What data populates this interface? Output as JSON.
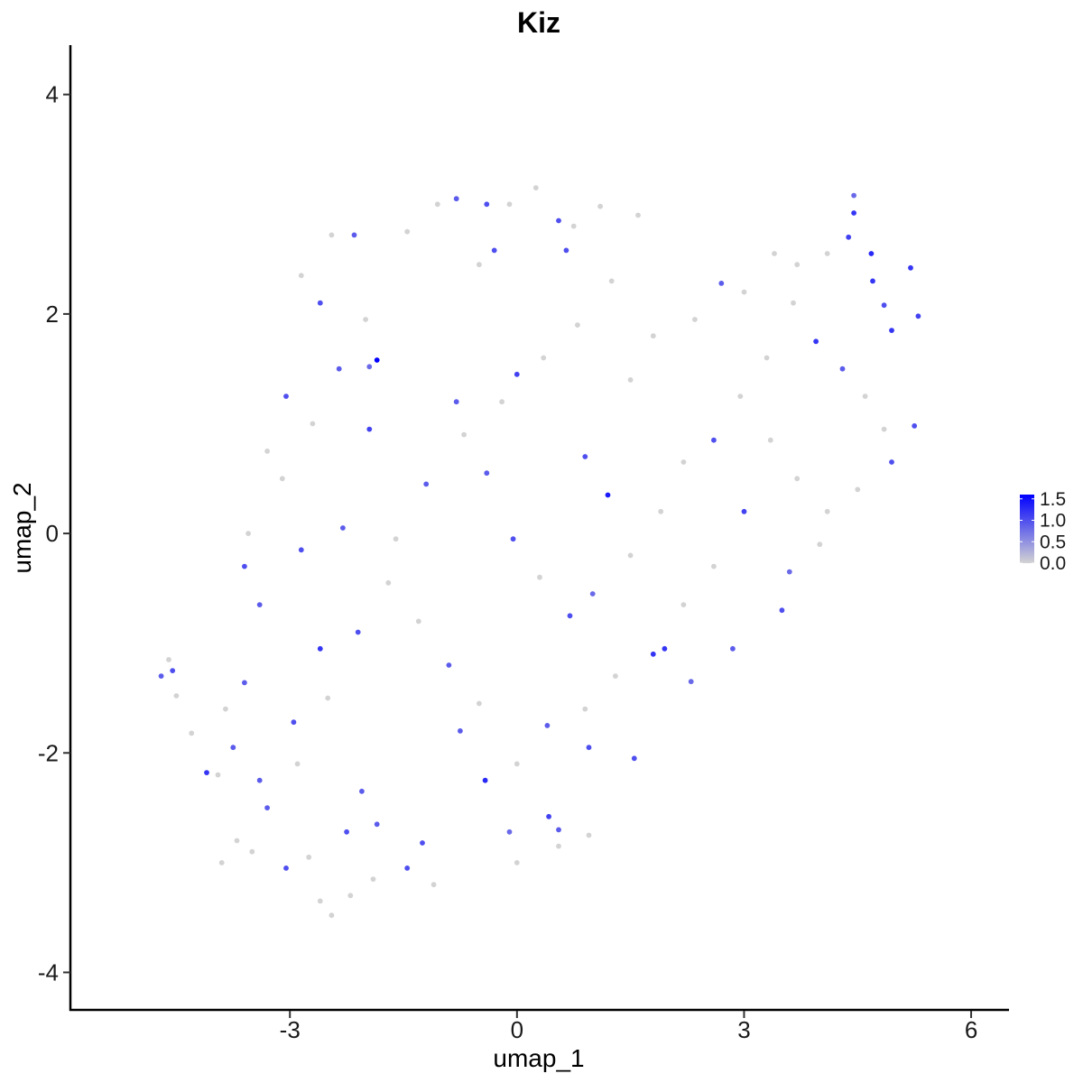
{
  "chart_data": {
    "type": "scatter",
    "title": "Kiz",
    "xlabel": "umap_1",
    "ylabel": "umap_2",
    "xlim": [
      -5.9,
      6.5
    ],
    "ylim": [
      -4.35,
      4.45
    ],
    "x_ticks": [
      -3,
      0,
      3,
      6
    ],
    "y_ticks": [
      -4,
      -2,
      0,
      2,
      4
    ],
    "x_tick_labels": [
      "-3",
      "0",
      "3",
      "6"
    ],
    "y_tick_labels": [
      "-4",
      "-2",
      "0",
      "2",
      "4"
    ],
    "grid": false,
    "legend": {
      "placement": "right",
      "type": "colorbar",
      "min": 0,
      "max": 1.6,
      "ticks": [
        "0.0",
        "0.5",
        "1.0",
        "1.5"
      ],
      "low_color": "#d3d3d3",
      "high_color": "#0000ff"
    },
    "points": [
      {
        "x": -4.7,
        "y": -1.3,
        "v": 0.9
      },
      {
        "x": -4.55,
        "y": -1.25,
        "v": 1.0
      },
      {
        "x": -4.6,
        "y": -1.15,
        "v": 0.0
      },
      {
        "x": -4.5,
        "y": -1.48,
        "v": 0.0
      },
      {
        "x": -4.3,
        "y": -1.82,
        "v": 0.0
      },
      {
        "x": -4.1,
        "y": -2.18,
        "v": 1.2
      },
      {
        "x": -3.75,
        "y": -1.95,
        "v": 0.9
      },
      {
        "x": -3.6,
        "y": -1.36,
        "v": 0.9
      },
      {
        "x": -3.4,
        "y": -2.25,
        "v": 0.9
      },
      {
        "x": -3.05,
        "y": -3.05,
        "v": 1.0
      },
      {
        "x": -2.95,
        "y": -1.72,
        "v": 1.0
      },
      {
        "x": -2.6,
        "y": -1.05,
        "v": 1.2
      },
      {
        "x": -2.25,
        "y": -2.72,
        "v": 1.0
      },
      {
        "x": -2.05,
        "y": -2.35,
        "v": 0.9
      },
      {
        "x": -1.85,
        "y": -2.65,
        "v": 0.9
      },
      {
        "x": -1.45,
        "y": -3.05,
        "v": 1.0
      },
      {
        "x": -1.25,
        "y": -2.82,
        "v": 1.0
      },
      {
        "x": -0.75,
        "y": -1.8,
        "v": 0.9
      },
      {
        "x": -0.42,
        "y": -2.25,
        "v": 1.3
      },
      {
        "x": -0.1,
        "y": -2.72,
        "v": 0.8
      },
      {
        "x": 0.42,
        "y": -2.58,
        "v": 1.1
      },
      {
        "x": 0.55,
        "y": -2.7,
        "v": 0.9
      },
      {
        "x": 0.95,
        "y": -1.95,
        "v": 1.0
      },
      {
        "x": 1.55,
        "y": -2.05,
        "v": 1.0
      },
      {
        "x": 1.95,
        "y": -1.05,
        "v": 1.2
      },
      {
        "x": 2.3,
        "y": -1.35,
        "v": 0.8
      },
      {
        "x": 2.85,
        "y": -1.05,
        "v": 0.9
      },
      {
        "x": 3.5,
        "y": -0.7,
        "v": 1.0
      },
      {
        "x": 3.6,
        "y": -0.35,
        "v": 0.8
      },
      {
        "x": 4.0,
        "y": -0.1,
        "v": 0.0
      },
      {
        "x": 4.95,
        "y": 0.65,
        "v": 1.0
      },
      {
        "x": 5.25,
        "y": 0.98,
        "v": 1.0
      },
      {
        "x": 5.3,
        "y": 1.98,
        "v": 1.1
      },
      {
        "x": 5.2,
        "y": 2.42,
        "v": 1.2
      },
      {
        "x": 4.95,
        "y": 1.85,
        "v": 1.2
      },
      {
        "x": 4.85,
        "y": 2.08,
        "v": 1.0
      },
      {
        "x": 4.68,
        "y": 2.55,
        "v": 1.3
      },
      {
        "x": 4.45,
        "y": 2.92,
        "v": 1.2
      },
      {
        "x": 4.38,
        "y": 2.7,
        "v": 1.1
      },
      {
        "x": 4.7,
        "y": 2.3,
        "v": 1.2
      },
      {
        "x": 4.45,
        "y": 3.08,
        "v": 0.8
      },
      {
        "x": 4.1,
        "y": 2.55,
        "v": 0.0
      },
      {
        "x": 3.7,
        "y": 2.45,
        "v": 0.0
      },
      {
        "x": 3.4,
        "y": 2.55,
        "v": 0.0
      },
      {
        "x": 3.0,
        "y": 2.2,
        "v": 0.0
      },
      {
        "x": 2.7,
        "y": 2.28,
        "v": 0.9
      },
      {
        "x": 2.35,
        "y": 1.95,
        "v": 0.0
      },
      {
        "x": 1.8,
        "y": 1.8,
        "v": 0.0
      },
      {
        "x": 1.5,
        "y": 1.4,
        "v": 0.0
      },
      {
        "x": 1.2,
        "y": 0.35,
        "v": 1.4
      },
      {
        "x": 0.9,
        "y": 0.7,
        "v": 1.0
      },
      {
        "x": 0.0,
        "y": 1.45,
        "v": 1.1
      },
      {
        "x": -1.85,
        "y": 1.58,
        "v": 1.6
      },
      {
        "x": -1.95,
        "y": 1.52,
        "v": 0.8
      },
      {
        "x": -2.15,
        "y": 2.72,
        "v": 0.9
      },
      {
        "x": -2.45,
        "y": 2.72,
        "v": 0.0
      },
      {
        "x": -2.85,
        "y": 2.35,
        "v": 0.0
      },
      {
        "x": -2.6,
        "y": 2.1,
        "v": 1.0
      },
      {
        "x": -3.05,
        "y": 1.25,
        "v": 1.0
      },
      {
        "x": -3.3,
        "y": 0.75,
        "v": 0.0
      },
      {
        "x": -3.55,
        "y": 0.0,
        "v": 0.0
      },
      {
        "x": -3.6,
        "y": -0.3,
        "v": 1.0
      },
      {
        "x": -2.85,
        "y": -0.15,
        "v": 1.0
      },
      {
        "x": -2.3,
        "y": 0.05,
        "v": 0.9
      },
      {
        "x": -1.95,
        "y": 0.95,
        "v": 1.1
      },
      {
        "x": -1.45,
        "y": 2.75,
        "v": 0.0
      },
      {
        "x": -1.05,
        "y": 3.0,
        "v": 0.0
      },
      {
        "x": -0.8,
        "y": 3.05,
        "v": 0.9
      },
      {
        "x": -0.4,
        "y": 3.0,
        "v": 1.0
      },
      {
        "x": -0.1,
        "y": 3.0,
        "v": 0.0
      },
      {
        "x": 0.25,
        "y": 3.15,
        "v": 0.0
      },
      {
        "x": 0.55,
        "y": 2.85,
        "v": 1.0
      },
      {
        "x": 0.75,
        "y": 2.8,
        "v": 0.0
      },
      {
        "x": 1.1,
        "y": 2.98,
        "v": 0.0
      },
      {
        "x": 1.6,
        "y": 2.9,
        "v": 0.0
      },
      {
        "x": -0.3,
        "y": 2.58,
        "v": 1.0
      },
      {
        "x": 0.65,
        "y": 2.58,
        "v": 1.0
      },
      {
        "x": -0.5,
        "y": 2.45,
        "v": 0.0
      },
      {
        "x": -0.8,
        "y": 1.2,
        "v": 0.9
      },
      {
        "x": -0.4,
        "y": 0.55,
        "v": 0.9
      },
      {
        "x": -0.05,
        "y": -0.05,
        "v": 1.0
      },
      {
        "x": 0.3,
        "y": -0.4,
        "v": 0.0
      },
      {
        "x": 0.7,
        "y": -0.75,
        "v": 1.0
      },
      {
        "x": 1.0,
        "y": -0.55,
        "v": 0.8
      },
      {
        "x": 1.5,
        "y": -0.2,
        "v": 0.0
      },
      {
        "x": 1.9,
        "y": 0.2,
        "v": 0.0
      },
      {
        "x": 2.2,
        "y": 0.65,
        "v": 0.0
      },
      {
        "x": 2.6,
        "y": 0.85,
        "v": 1.0
      },
      {
        "x": 2.95,
        "y": 1.25,
        "v": 0.0
      },
      {
        "x": 3.3,
        "y": 1.6,
        "v": 0.0
      },
      {
        "x": 3.65,
        "y": 2.1,
        "v": 0.0
      },
      {
        "x": 3.95,
        "y": 1.75,
        "v": 1.2
      },
      {
        "x": 4.3,
        "y": 1.5,
        "v": 0.9
      },
      {
        "x": 4.6,
        "y": 1.25,
        "v": 0.0
      },
      {
        "x": 4.85,
        "y": 0.95,
        "v": 0.0
      },
      {
        "x": 4.5,
        "y": 0.4,
        "v": 0.0
      },
      {
        "x": 4.1,
        "y": 0.2,
        "v": 0.0
      },
      {
        "x": 3.7,
        "y": 0.5,
        "v": 0.0
      },
      {
        "x": 3.35,
        "y": 0.85,
        "v": 0.0
      },
      {
        "x": 3.0,
        "y": 0.2,
        "v": 1.1
      },
      {
        "x": 2.6,
        "y": -0.3,
        "v": 0.0
      },
      {
        "x": 2.2,
        "y": -0.65,
        "v": 0.0
      },
      {
        "x": 1.8,
        "y": -1.1,
        "v": 1.2
      },
      {
        "x": 1.3,
        "y": -1.3,
        "v": 0.0
      },
      {
        "x": 0.9,
        "y": -1.6,
        "v": 0.0
      },
      {
        "x": 0.4,
        "y": -1.75,
        "v": 0.9
      },
      {
        "x": 0.0,
        "y": -2.1,
        "v": 0.0
      },
      {
        "x": -0.5,
        "y": -1.55,
        "v": 0.0
      },
      {
        "x": -0.9,
        "y": -1.2,
        "v": 0.9
      },
      {
        "x": -1.3,
        "y": -0.8,
        "v": 0.0
      },
      {
        "x": -1.7,
        "y": -0.45,
        "v": 0.0
      },
      {
        "x": -2.1,
        "y": -0.9,
        "v": 1.0
      },
      {
        "x": -2.5,
        "y": -1.5,
        "v": 0.0
      },
      {
        "x": -2.9,
        "y": -2.1,
        "v": 0.0
      },
      {
        "x": -3.3,
        "y": -2.5,
        "v": 0.9
      },
      {
        "x": -3.7,
        "y": -2.8,
        "v": 0.0
      },
      {
        "x": -3.9,
        "y": -3.0,
        "v": 0.0
      },
      {
        "x": -2.6,
        "y": -3.35,
        "v": 0.0
      },
      {
        "x": -2.45,
        "y": -3.48,
        "v": 0.0
      },
      {
        "x": -2.2,
        "y": -3.3,
        "v": 0.0
      },
      {
        "x": -1.9,
        "y": -3.15,
        "v": 0.0
      },
      {
        "x": -1.1,
        "y": -3.2,
        "v": 0.0
      },
      {
        "x": 0.0,
        "y": -3.0,
        "v": 0.0
      },
      {
        "x": 0.55,
        "y": -2.85,
        "v": 0.0
      },
      {
        "x": 0.95,
        "y": -2.75,
        "v": 0.0
      },
      {
        "x": -1.6,
        "y": -0.05,
        "v": 0.0
      },
      {
        "x": -1.2,
        "y": 0.45,
        "v": 0.9
      },
      {
        "x": -0.7,
        "y": 0.9,
        "v": 0.0
      },
      {
        "x": -0.2,
        "y": 1.2,
        "v": 0.0
      },
      {
        "x": 0.35,
        "y": 1.6,
        "v": 0.0
      },
      {
        "x": 0.8,
        "y": 1.9,
        "v": 0.0
      },
      {
        "x": 1.25,
        "y": 2.3,
        "v": 0.0
      },
      {
        "x": -2.0,
        "y": 1.95,
        "v": 0.0
      },
      {
        "x": -2.35,
        "y": 1.5,
        "v": 0.9
      },
      {
        "x": -2.7,
        "y": 1.0,
        "v": 0.0
      },
      {
        "x": -3.1,
        "y": 0.5,
        "v": 0.0
      },
      {
        "x": -3.4,
        "y": -0.65,
        "v": 0.9
      },
      {
        "x": -3.85,
        "y": -1.6,
        "v": 0.0
      },
      {
        "x": -3.95,
        "y": -2.2,
        "v": 0.0
      },
      {
        "x": -3.5,
        "y": -2.9,
        "v": 0.0
      },
      {
        "x": -2.75,
        "y": -2.95,
        "v": 0.0
      }
    ]
  }
}
